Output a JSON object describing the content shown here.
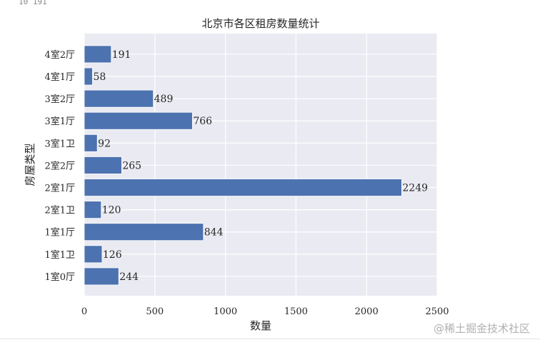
{
  "console_output": "10 191",
  "watermark": "@稀土掘金技术社区",
  "chart_data": {
    "type": "bar",
    "orientation": "horizontal",
    "title": "北京市各区租房数量统计",
    "xlabel": "数量",
    "ylabel": "房屋类型",
    "categories": [
      "1室0厅",
      "1室1卫",
      "1室1厅",
      "2室1卫",
      "2室1厅",
      "2室2厅",
      "3室1卫",
      "3室1厅",
      "3室2厅",
      "4室1厅",
      "4室2厅"
    ],
    "values": [
      244,
      126,
      844,
      120,
      2249,
      265,
      92,
      766,
      489,
      58,
      191
    ],
    "xlim": [
      0,
      2500
    ],
    "xticks": [
      0,
      500,
      1000,
      1500,
      2000,
      2500
    ],
    "grid": true,
    "colors": {
      "bar": "#4c72b0",
      "background": "#eaeaf2",
      "grid": "#ffffff"
    }
  }
}
